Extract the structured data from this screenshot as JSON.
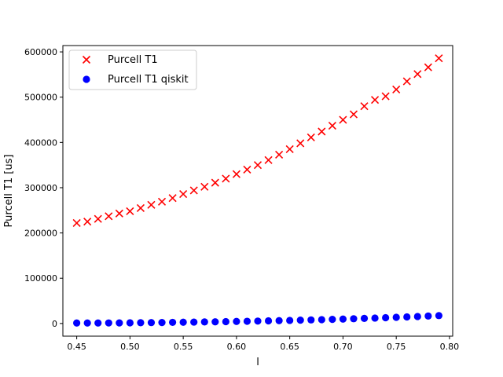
{
  "chart_data": {
    "type": "scatter",
    "xlabel": "l",
    "ylabel": "Purcell T1 [us]",
    "xlim": [
      0.437,
      0.803
    ],
    "ylim": [
      -28000,
      614000
    ],
    "xticks": [
      0.45,
      0.5,
      0.55,
      0.6,
      0.65,
      0.7,
      0.75,
      0.8
    ],
    "xtick_labels": [
      "0.45",
      "0.50",
      "0.55",
      "0.60",
      "0.65",
      "0.70",
      "0.75",
      "0.80"
    ],
    "yticks": [
      0,
      100000,
      200000,
      300000,
      400000,
      500000,
      600000
    ],
    "ytick_labels": [
      "0",
      "100000",
      "200000",
      "300000",
      "400000",
      "500000",
      "600000"
    ],
    "legend_position": "upper-left",
    "grid": false,
    "x": [
      0.45,
      0.46,
      0.47,
      0.48,
      0.49,
      0.5,
      0.51,
      0.52,
      0.53,
      0.54,
      0.55,
      0.56,
      0.57,
      0.58,
      0.59,
      0.6,
      0.61,
      0.62,
      0.63,
      0.64,
      0.65,
      0.66,
      0.67,
      0.68,
      0.69,
      0.7,
      0.71,
      0.72,
      0.73,
      0.74,
      0.75,
      0.76,
      0.77,
      0.78,
      0.79
    ],
    "series": [
      {
        "name": "Purcell T1",
        "marker": "x",
        "color": "#ff0000",
        "values": [
          222000,
          225000,
          231000,
          237000,
          243000,
          248000,
          255000,
          262000,
          269000,
          277000,
          286000,
          294000,
          302000,
          311000,
          320000,
          330000,
          340000,
          350000,
          361000,
          373000,
          385000,
          398000,
          411000,
          424000,
          437000,
          450000,
          462000,
          480000,
          494000,
          502000,
          517000,
          535000,
          551000,
          566000,
          586000
        ]
      },
      {
        "name": "Purcell T1 qiskit",
        "marker": "o",
        "color": "#0000ff",
        "values": [
          1000,
          1000,
          1100,
          1200,
          1300,
          1500,
          1700,
          2000,
          2200,
          2500,
          2800,
          3100,
          3400,
          3700,
          4100,
          4500,
          4900,
          5300,
          5800,
          6300,
          6800,
          7300,
          7900,
          8500,
          9100,
          9800,
          10500,
          11200,
          12000,
          12800,
          13700,
          14500,
          15400,
          16400,
          17400
        ]
      }
    ]
  }
}
